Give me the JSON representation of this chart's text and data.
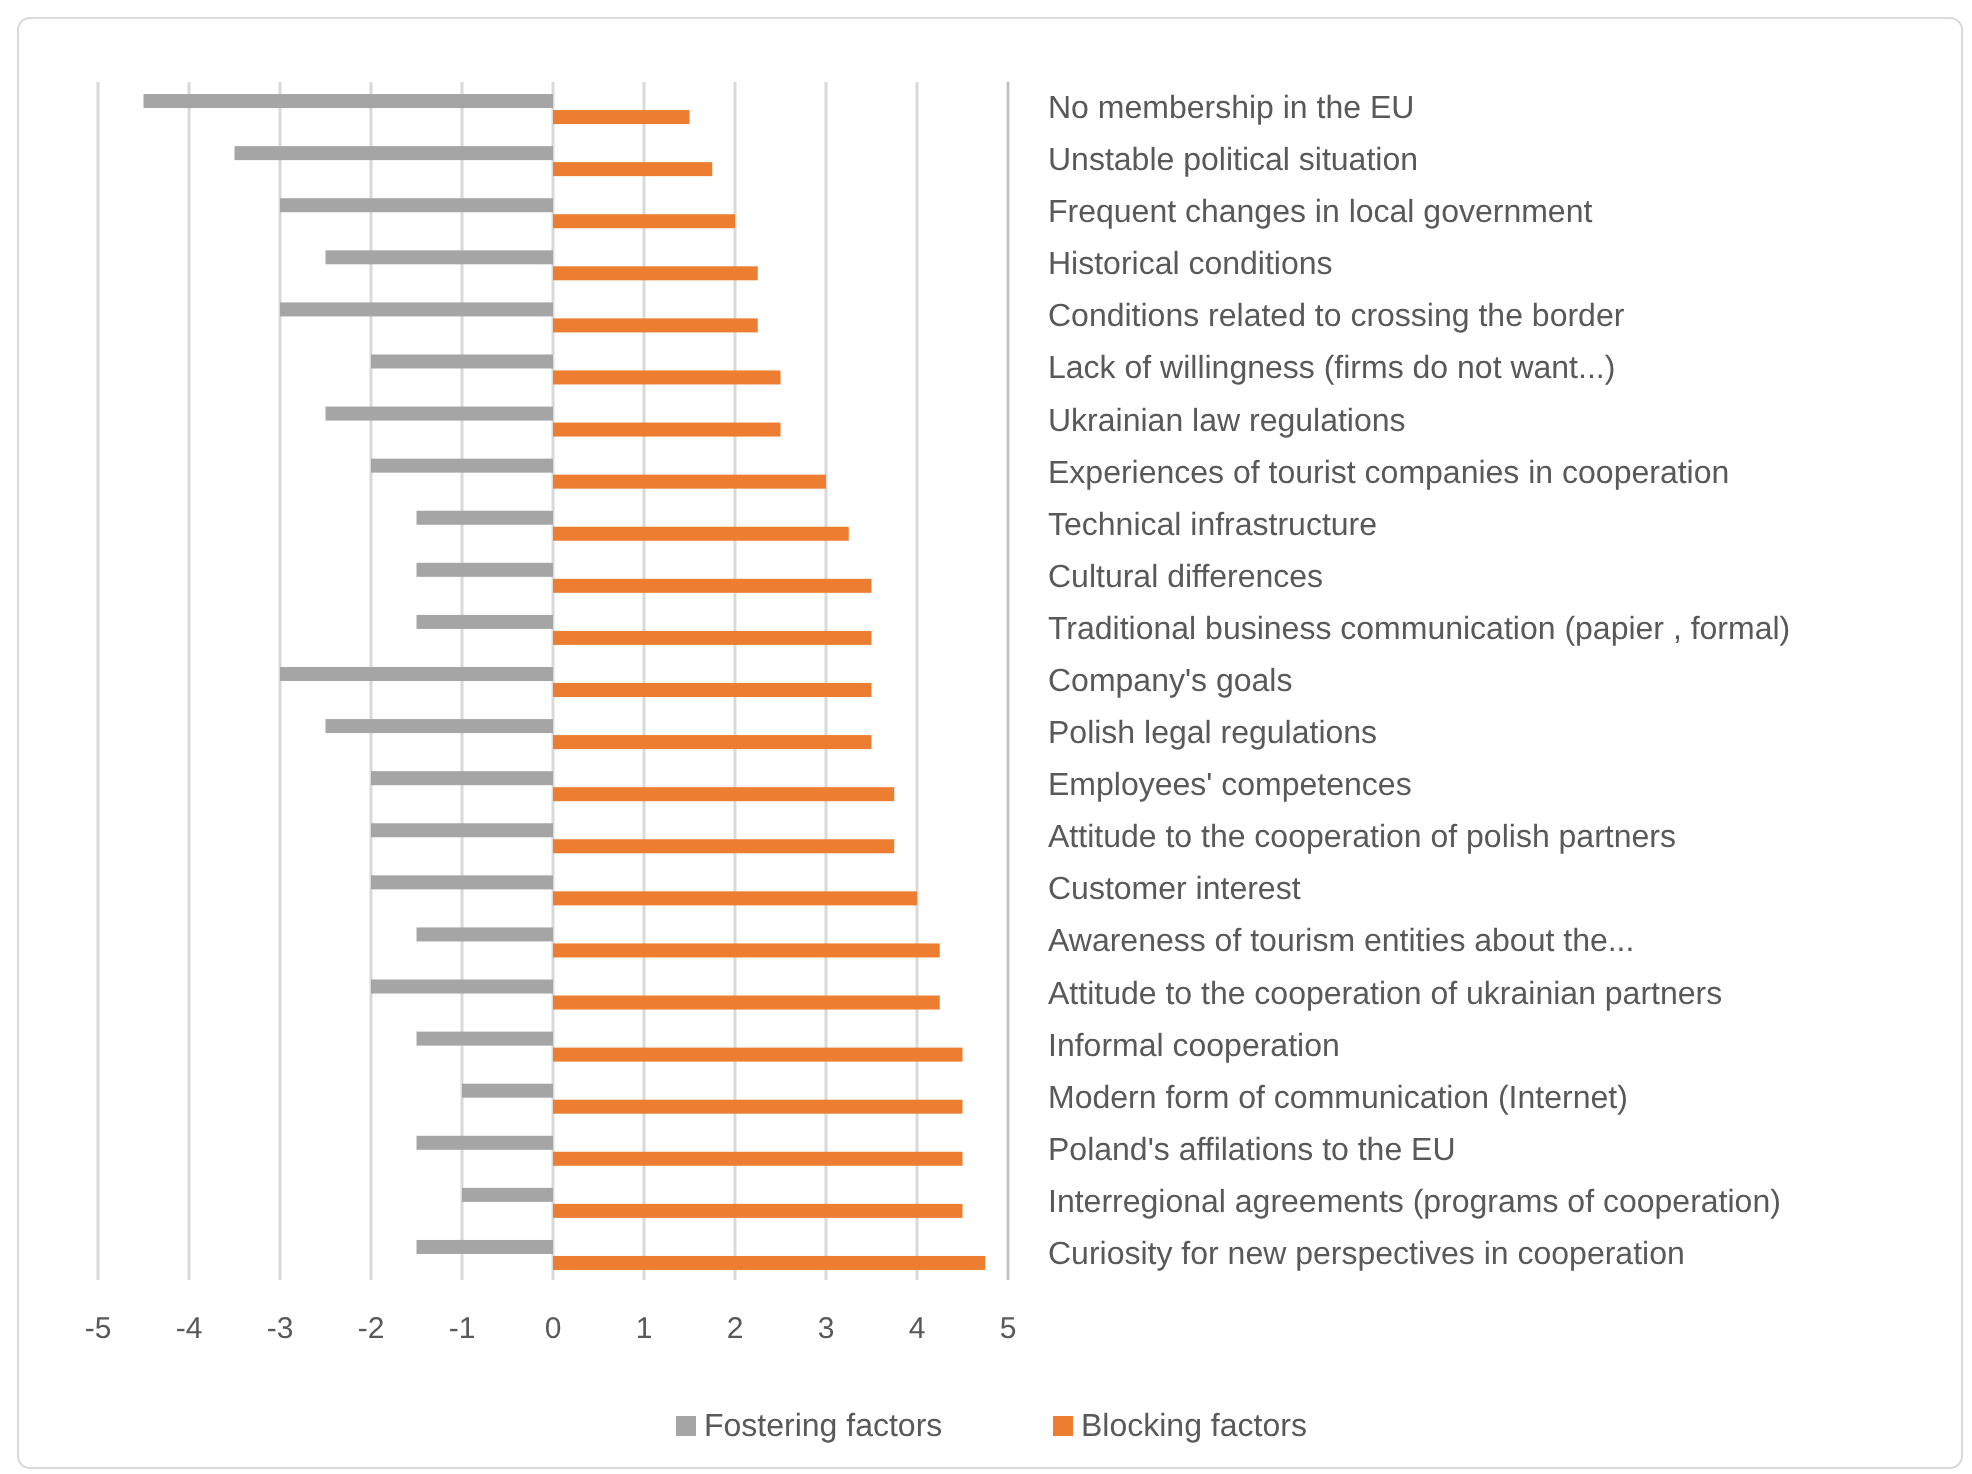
{
  "chart_data": {
    "type": "bar",
    "orientation": "horizontal",
    "categories": [
      "No membership in the EU",
      "Unstable political situation",
      "Frequent changes in local government",
      "Historical conditions",
      "Conditions related to crossing the border",
      "Lack of willingness (firms do not want...)",
      "Ukrainian law regulations",
      "Experiences of tourist companies in cooperation",
      "Technical infrastructure",
      "Cultural differences",
      "Traditional business communication (papier , formal)",
      "Company's goals",
      "Polish legal regulations",
      "Employees' competences",
      "Attitude to the cooperation of polish partners",
      "Customer interest",
      "Awareness of tourism entities about the...",
      "Attitude to the cooperation of ukrainian partners",
      "Informal cooperation",
      "Modern form of communication (Internet)",
      "Poland's affilations to the EU",
      "Interregional agreements (programs of cooperation)",
      "Curiosity for new perspectives in cooperation"
    ],
    "series": [
      {
        "name": "Fostering factors",
        "color": "#a5a5a5",
        "values": [
          -4.5,
          -3.5,
          -3,
          -2.5,
          -3,
          -2,
          -2.5,
          -2,
          -1.5,
          -1.5,
          -1.5,
          -3,
          -2.5,
          -2,
          -2,
          -2,
          -1.5,
          -2,
          -1.5,
          -1,
          -1.5,
          -1,
          -1.5
        ]
      },
      {
        "name": "Blocking factors",
        "color": "#ed7d31",
        "values": [
          1.5,
          1.75,
          2,
          2.25,
          2.25,
          2.5,
          2.5,
          3,
          3.25,
          3.5,
          3.5,
          3.5,
          3.5,
          3.75,
          3.75,
          4,
          4.25,
          4.25,
          4.5,
          4.5,
          4.5,
          4.5,
          4.75
        ]
      }
    ],
    "xlim": [
      -5,
      5
    ],
    "xticks": [
      -5,
      -4,
      -3,
      -2,
      -1,
      0,
      1,
      2,
      3,
      4,
      5
    ],
    "grid": "x",
    "legend": "bottom"
  }
}
